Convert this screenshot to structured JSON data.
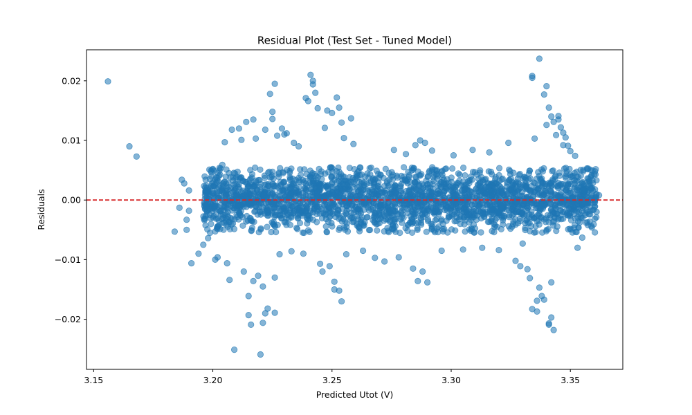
{
  "chart_data": {
    "type": "scatter",
    "title": "Residual Plot (Test Set - Tuned Model)",
    "xlabel": "Predicted Utot (V)",
    "ylabel": "Residuals",
    "xlim": [
      3.147,
      3.372
    ],
    "ylim": [
      -0.0284,
      0.0252
    ],
    "xticks": [
      {
        "value": 3.15,
        "label": "3.15"
      },
      {
        "value": 3.2,
        "label": "3.20"
      },
      {
        "value": 3.25,
        "label": "3.25"
      },
      {
        "value": 3.3,
        "label": "3.30"
      },
      {
        "value": 3.35,
        "label": "3.35"
      }
    ],
    "yticks": [
      {
        "value": 0.02,
        "label": "0.02"
      },
      {
        "value": 0.01,
        "label": "0.01"
      },
      {
        "value": 0.0,
        "label": "0.00"
      },
      {
        "value": -0.01,
        "label": "−0.01"
      },
      {
        "value": -0.02,
        "label": "−0.02"
      }
    ],
    "reference_line": {
      "y": 0.0,
      "color": "#d62728",
      "style": "dashed"
    },
    "point_color": "#1f77b4",
    "point_alpha": 0.55,
    "grid": false,
    "dense_band": {
      "x_range": [
        3.196,
        3.361
      ],
      "y_range": [
        -0.0055,
        0.0055
      ]
    },
    "points": [
      [
        3.156,
        0.0199
      ],
      [
        3.165,
        0.009
      ],
      [
        3.168,
        0.0073
      ],
      [
        3.184,
        -0.0053
      ],
      [
        3.186,
        -0.0013
      ],
      [
        3.187,
        0.0034
      ],
      [
        3.188,
        0.0028
      ],
      [
        3.189,
        -0.005
      ],
      [
        3.189,
        -0.0033
      ],
      [
        3.19,
        -0.0018
      ],
      [
        3.191,
        -0.0106
      ],
      [
        3.19,
        0.0016
      ],
      [
        3.194,
        -0.009
      ],
      [
        3.196,
        -0.0075
      ],
      [
        3.197,
        0.0034
      ],
      [
        3.198,
        -0.0064
      ],
      [
        3.2,
        0.0052
      ],
      [
        3.201,
        -0.01
      ],
      [
        3.202,
        -0.0096
      ],
      [
        3.204,
        0.0059
      ],
      [
        3.205,
        0.0097
      ],
      [
        3.206,
        -0.0106
      ],
      [
        3.207,
        -0.0134
      ],
      [
        3.208,
        0.0118
      ],
      [
        3.209,
        -0.0251
      ],
      [
        3.211,
        0.012
      ],
      [
        3.212,
        0.0101
      ],
      [
        3.213,
        -0.012
      ],
      [
        3.214,
        0.0131
      ],
      [
        3.215,
        -0.0161
      ],
      [
        3.215,
        -0.0193
      ],
      [
        3.216,
        -0.0209
      ],
      [
        3.217,
        -0.0136
      ],
      [
        3.217,
        0.0135
      ],
      [
        3.218,
        0.0103
      ],
      [
        3.219,
        -0.0127
      ],
      [
        3.22,
        -0.0259
      ],
      [
        3.221,
        -0.0206
      ],
      [
        3.221,
        -0.0145
      ],
      [
        3.222,
        -0.019
      ],
      [
        3.222,
        0.0118
      ],
      [
        3.223,
        -0.0182
      ],
      [
        3.224,
        0.0178
      ],
      [
        3.225,
        0.0136
      ],
      [
        3.225,
        0.0148
      ],
      [
        3.226,
        0.0195
      ],
      [
        3.226,
        -0.0189
      ],
      [
        3.226,
        -0.013
      ],
      [
        3.227,
        0.0108
      ],
      [
        3.228,
        -0.0091
      ],
      [
        3.229,
        0.012
      ],
      [
        3.23,
        0.011
      ],
      [
        3.231,
        0.0112
      ],
      [
        3.233,
        -0.0086
      ],
      [
        3.234,
        0.0096
      ],
      [
        3.236,
        0.009
      ],
      [
        3.238,
        -0.009
      ],
      [
        3.239,
        0.0171
      ],
      [
        3.24,
        0.0166
      ],
      [
        3.241,
        0.021
      ],
      [
        3.242,
        0.02
      ],
      [
        3.242,
        0.0194
      ],
      [
        3.243,
        0.018
      ],
      [
        3.244,
        0.0154
      ],
      [
        3.245,
        -0.0107
      ],
      [
        3.246,
        -0.012
      ],
      [
        3.247,
        0.0121
      ],
      [
        3.248,
        0.015
      ],
      [
        3.249,
        -0.0111
      ],
      [
        3.25,
        0.0146
      ],
      [
        3.251,
        -0.0137
      ],
      [
        3.251,
        -0.015
      ],
      [
        3.252,
        0.0172
      ],
      [
        3.253,
        0.0155
      ],
      [
        3.253,
        -0.0152
      ],
      [
        3.254,
        0.013
      ],
      [
        3.254,
        -0.017
      ],
      [
        3.255,
        0.0104
      ],
      [
        3.256,
        -0.0091
      ],
      [
        3.258,
        0.0137
      ],
      [
        3.259,
        0.0094
      ],
      [
        3.263,
        -0.0085
      ],
      [
        3.268,
        -0.0097
      ],
      [
        3.272,
        -0.0103
      ],
      [
        3.276,
        0.0084
      ],
      [
        3.278,
        -0.0096
      ],
      [
        3.281,
        0.0077
      ],
      [
        3.284,
        -0.0115
      ],
      [
        3.285,
        0.0092
      ],
      [
        3.286,
        -0.0136
      ],
      [
        3.287,
        0.01
      ],
      [
        3.288,
        -0.012
      ],
      [
        3.289,
        0.0096
      ],
      [
        3.29,
        -0.0138
      ],
      [
        3.292,
        0.0083
      ],
      [
        3.296,
        -0.0085
      ],
      [
        3.301,
        0.0075
      ],
      [
        3.305,
        -0.0083
      ],
      [
        3.309,
        0.0084
      ],
      [
        3.313,
        -0.008
      ],
      [
        3.316,
        0.008
      ],
      [
        3.32,
        -0.0084
      ],
      [
        3.324,
        0.0096
      ],
      [
        3.327,
        -0.0102
      ],
      [
        3.329,
        -0.0111
      ],
      [
        3.33,
        -0.0073
      ],
      [
        3.332,
        -0.0116
      ],
      [
        3.333,
        -0.0131
      ],
      [
        3.334,
        0.0205
      ],
      [
        3.334,
        0.0208
      ],
      [
        3.334,
        -0.0183
      ],
      [
        3.335,
        0.0103
      ],
      [
        3.336,
        -0.0169
      ],
      [
        3.336,
        -0.0187
      ],
      [
        3.337,
        0.0237
      ],
      [
        3.337,
        -0.0147
      ],
      [
        3.338,
        -0.0161
      ],
      [
        3.339,
        -0.0167
      ],
      [
        3.339,
        0.0177
      ],
      [
        3.34,
        0.0126
      ],
      [
        3.34,
        0.0191
      ],
      [
        3.341,
        -0.0209
      ],
      [
        3.341,
        0.0155
      ],
      [
        3.341,
        -0.0207
      ],
      [
        3.342,
        0.014
      ],
      [
        3.342,
        -0.0138
      ],
      [
        3.342,
        -0.0197
      ],
      [
        3.343,
        0.0131
      ],
      [
        3.343,
        -0.0218
      ],
      [
        3.344,
        0.0109
      ],
      [
        3.345,
        0.0141
      ],
      [
        3.345,
        0.0135
      ],
      [
        3.346,
        0.0122
      ],
      [
        3.347,
        0.0113
      ],
      [
        3.347,
        0.0092
      ],
      [
        3.348,
        0.0105
      ],
      [
        3.349,
        0.0091
      ],
      [
        3.35,
        0.0082
      ],
      [
        3.352,
        0.0074
      ],
      [
        3.353,
        -0.008
      ],
      [
        3.355,
        -0.0063
      ],
      [
        3.357,
        0.0053
      ],
      [
        3.359,
        -0.0046
      ],
      [
        3.36,
        0.0043
      ],
      [
        3.361,
        0.001
      ],
      [
        3.361,
        -0.002
      ],
      [
        3.362,
        0.0008
      ]
    ]
  }
}
